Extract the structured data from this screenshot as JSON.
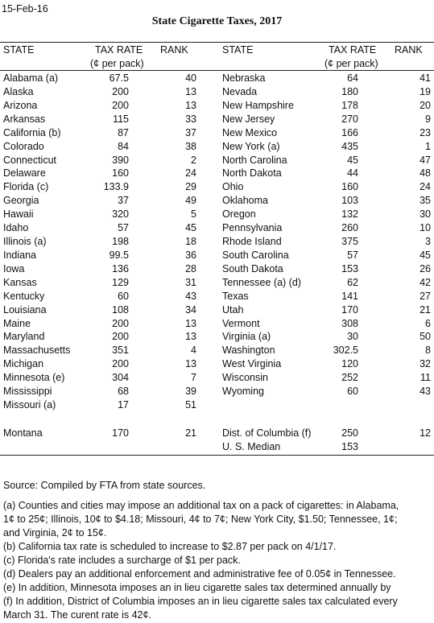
{
  "date": "15-Feb-16",
  "title": "State Cigarette Taxes, 2017",
  "table": {
    "left_header": {
      "state": "STATE",
      "tax": "TAX RATE",
      "unit": "(¢ per pack)",
      "rank": "RANK"
    },
    "right_header": {
      "state": "STATE",
      "tax": "TAX RATE",
      "unit": "(¢ per pack)",
      "rank": "RANK"
    },
    "left_rows": [
      [
        "Alabama (a)",
        67.5,
        40
      ],
      [
        "Alaska",
        200,
        13
      ],
      [
        "Arizona",
        200,
        13
      ],
      [
        "Arkansas",
        115,
        33
      ],
      [
        "California (b)",
        87,
        37
      ],
      [
        "Colorado",
        84,
        38
      ],
      [
        "Connecticut",
        390,
        2
      ],
      [
        "Delaware",
        160,
        24
      ],
      [
        "Florida (c)",
        133.9,
        29
      ],
      [
        "Georgia",
        37,
        49
      ],
      [
        "Hawaii",
        320,
        5
      ],
      [
        "Idaho",
        57,
        45
      ],
      [
        "Illinois (a)",
        198,
        18
      ],
      [
        "Indiana",
        99.5,
        36
      ],
      [
        "Iowa",
        136,
        28
      ],
      [
        "Kansas",
        129,
        31
      ],
      [
        "Kentucky",
        60,
        43
      ],
      [
        "Louisiana",
        108,
        34
      ],
      [
        "Maine",
        200,
        13
      ],
      [
        "Maryland",
        200,
        13
      ],
      [
        "Massachusetts",
        351,
        4
      ],
      [
        "Michigan",
        200,
        13
      ],
      [
        "Minnesota (e)",
        304,
        7
      ],
      [
        "Mississippi",
        68,
        39
      ],
      [
        "Missouri (a)",
        17,
        51
      ]
    ],
    "left_footer_rows": [
      [
        "Montana",
        170,
        21
      ]
    ],
    "right_rows": [
      [
        "Nebraska",
        64,
        41
      ],
      [
        "Nevada",
        180,
        19
      ],
      [
        "New Hampshire",
        178,
        20
      ],
      [
        "New Jersey",
        270,
        9
      ],
      [
        "New Mexico",
        166,
        23
      ],
      [
        "New York (a)",
        435,
        1
      ],
      [
        "North Carolina",
        45,
        47
      ],
      [
        "North Dakota",
        44,
        48
      ],
      [
        "Ohio",
        160,
        24
      ],
      [
        "Oklahoma",
        103,
        35
      ],
      [
        "Oregon",
        132,
        30
      ],
      [
        "Pennsylvania",
        260,
        10
      ],
      [
        "Rhode Island",
        375,
        3
      ],
      [
        "South Carolina",
        57,
        45
      ],
      [
        "South Dakota",
        153,
        26
      ],
      [
        "Tennessee (a) (d)",
        62,
        42
      ],
      [
        "Texas",
        141,
        27
      ],
      [
        "Utah",
        170,
        21
      ],
      [
        "Vermont",
        308,
        6
      ],
      [
        "Virginia (a)",
        30,
        50
      ],
      [
        "Washington",
        302.5,
        8
      ],
      [
        "West Virginia",
        120,
        32
      ],
      [
        "Wisconsin",
        252,
        11
      ],
      [
        "Wyoming",
        60,
        43
      ]
    ],
    "right_footer_rows": [
      [
        "Dist. of Columbia (f)",
        250,
        12
      ],
      [
        "U. S. Median",
        153
      ]
    ]
  },
  "source": "Source: Compiled by FTA from state sources.",
  "notes": [
    [
      "(a) Counties and cities may impose an additional tax on a pack of cigarettes:  in Alabama,",
      "1¢ to 25¢; Illinois, 10¢ to $4.18; Missouri, 4¢ to 7¢; New York City, $1.50; Tennessee, 1¢;",
      "and Virginia, 2¢ to 15¢."
    ],
    [
      "(b) California tax rate is scheduled to increase to $2.87 per pack on 4/1/17."
    ],
    [
      "(c) Florida's rate includes a surcharge of $1 per pack."
    ],
    [
      "(d) Dealers pay an additional enforcement and administrative fee of 0.05¢ in Tennessee."
    ],
    [
      "(e) In addition, Minnesota imposes an in lieu cigarette sales tax determined annually by"
    ],
    [
      "(f) In addition, District of Columbia imposes an in lieu cigarette sales tax calculated every",
      "March 31. The curent rate is 42¢."
    ]
  ]
}
